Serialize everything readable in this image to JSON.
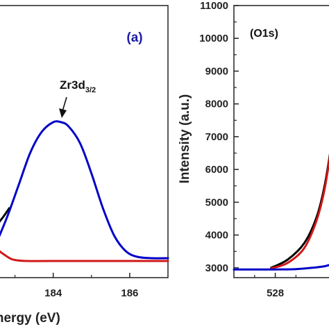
{
  "chart_data": [
    {
      "type": "line",
      "panel_label": "(a)",
      "panel_label_color": "#1c1ca8",
      "xlabel": "Energy (eV)",
      "xlim": [
        182.5,
        187.0
      ],
      "ylim": [
        0,
        1
      ],
      "x_ticks": [
        184,
        186
      ],
      "peak_annotation": {
        "text": "Zr3d",
        "subscript": "3/2"
      },
      "series": [
        {
          "color": "#000000",
          "x": [
            182.5,
            182.7,
            182.85
          ],
          "y": [
            0.25,
            0.32,
            0.38
          ]
        },
        {
          "color": "#0000c8",
          "x": [
            182.5,
            182.8,
            183.1,
            183.4,
            183.7,
            184.0,
            184.2,
            184.4,
            184.7,
            185.0,
            185.3,
            185.6,
            185.9,
            186.2,
            186.6,
            187.0
          ],
          "y": [
            0.12,
            0.32,
            0.55,
            0.78,
            0.93,
            1.0,
            1.0,
            0.97,
            0.85,
            0.63,
            0.38,
            0.18,
            0.07,
            0.03,
            0.02,
            0.02
          ]
        },
        {
          "color": "#d01818",
          "x": [
            182.5,
            182.6,
            182.75,
            182.9,
            183.05,
            183.3,
            184.0,
            187.0
          ],
          "y": [
            0.1,
            0.07,
            0.04,
            0.015,
            0.005,
            0.0,
            0.0,
            0.0
          ]
        }
      ]
    },
    {
      "type": "line",
      "panel_label": "(O1s)",
      "ylabel": "Intensity (a.u.)",
      "xlim": [
        527.0,
        529.4
      ],
      "ylim": [
        2700,
        11000
      ],
      "y_ticks": [
        3000,
        4000,
        5000,
        6000,
        7000,
        8000,
        9000,
        10000,
        11000
      ],
      "x_ticks": [
        528
      ],
      "series": [
        {
          "color": "#000000",
          "x": [
            527.9,
            528.3,
            528.7,
            529.0,
            529.2,
            529.4
          ],
          "y": [
            3000,
            3250,
            3750,
            4550,
            5550,
            7100
          ]
        },
        {
          "color": "#d01818",
          "x": [
            527.9,
            528.3,
            528.7,
            529.0,
            529.2,
            529.4
          ],
          "y": [
            2980,
            3150,
            3600,
            4450,
            5450,
            7050
          ]
        },
        {
          "color": "#0000c8",
          "x": [
            527.0,
            527.5,
            528.0,
            528.5,
            528.9,
            529.2,
            529.4
          ],
          "y": [
            2950,
            2950,
            2950,
            2960,
            3000,
            3050,
            3120
          ]
        }
      ]
    }
  ]
}
